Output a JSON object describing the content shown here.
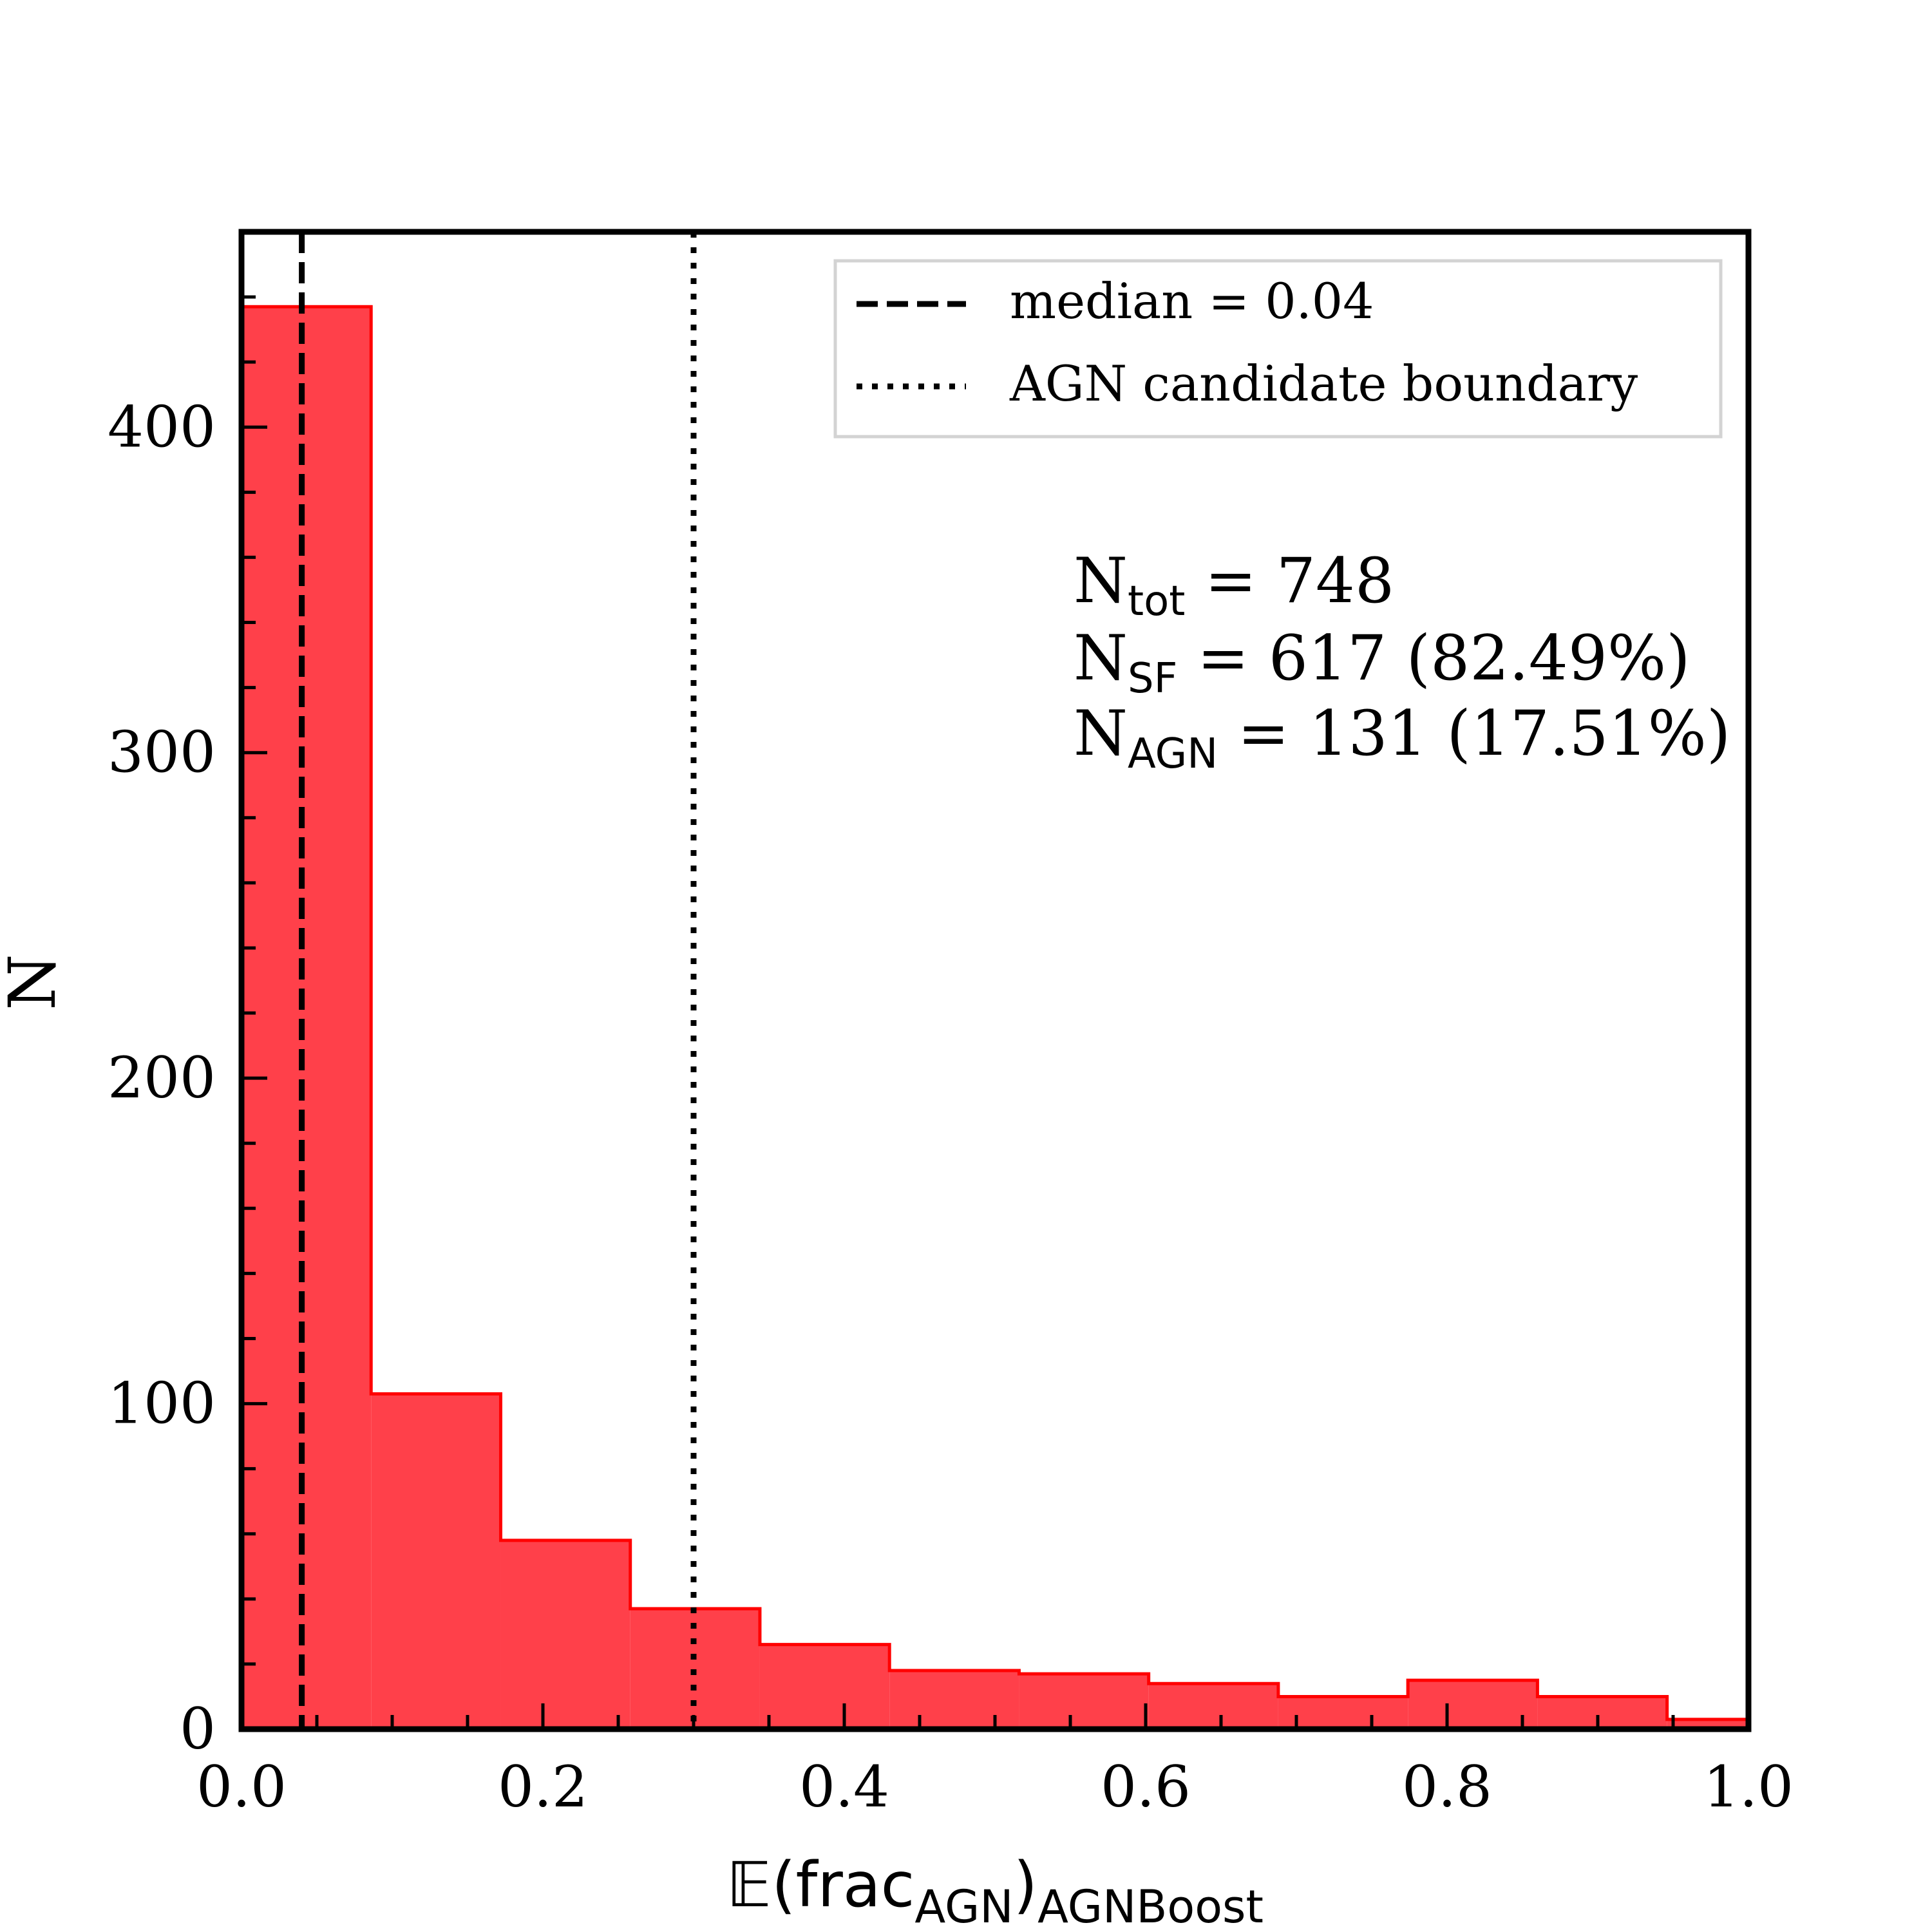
{
  "chart_data": {
    "type": "histogram",
    "xlabel": {
      "main": "𝔼(frac",
      "sub1": "AGN",
      "close": ")",
      "sub2": "AGNBoost"
    },
    "ylabel": "N",
    "xlim": [
      0.0,
      1.0
    ],
    "ylim": [
      0,
      460
    ],
    "x_ticks": [
      {
        "value": 0.0,
        "label": "0.0"
      },
      {
        "value": 0.2,
        "label": "0.2"
      },
      {
        "value": 0.4,
        "label": "0.4"
      },
      {
        "value": 0.6,
        "label": "0.6"
      },
      {
        "value": 0.8,
        "label": "0.8"
      },
      {
        "value": 1.0,
        "label": "1.0"
      }
    ],
    "y_ticks": [
      {
        "value": 0,
        "label": "0"
      },
      {
        "value": 100,
        "label": "100"
      },
      {
        "value": 200,
        "label": "200"
      },
      {
        "value": 300,
        "label": "300"
      },
      {
        "value": 400,
        "label": "400"
      }
    ],
    "x_minor_step": 0.05,
    "y_minor_step": 20,
    "bins": [
      {
        "x0": 0.0,
        "x1": 0.086,
        "count": 437
      },
      {
        "x0": 0.086,
        "x1": 0.172,
        "count": 103
      },
      {
        "x0": 0.172,
        "x1": 0.258,
        "count": 58
      },
      {
        "x0": 0.258,
        "x1": 0.344,
        "count": 37
      },
      {
        "x0": 0.344,
        "x1": 0.43,
        "count": 26
      },
      {
        "x0": 0.43,
        "x1": 0.516,
        "count": 18
      },
      {
        "x0": 0.516,
        "x1": 0.602,
        "count": 17
      },
      {
        "x0": 0.602,
        "x1": 0.688,
        "count": 14
      },
      {
        "x0": 0.688,
        "x1": 0.774,
        "count": 10
      },
      {
        "x0": 0.774,
        "x1": 0.86,
        "count": 15
      },
      {
        "x0": 0.86,
        "x1": 0.946,
        "count": 10
      },
      {
        "x0": 0.946,
        "x1": 1.032,
        "count": 3
      }
    ],
    "fill_color": "#ff404a",
    "edge_color": "#ff0000",
    "vlines": [
      {
        "name": "median",
        "x": 0.04,
        "style": "dashed"
      },
      {
        "name": "AGN candidate boundary",
        "x": 0.3,
        "style": "dotted"
      }
    ],
    "legend": {
      "placement": "upper-right",
      "entries": [
        {
          "style": "dashed",
          "label": "median =  0.04"
        },
        {
          "style": "dotted",
          "label": "AGN candidate boundary"
        }
      ]
    },
    "annotations": [
      {
        "symbol": "N",
        "sub": "tot",
        "text": " = 748"
      },
      {
        "symbol": "N",
        "sub": "SF",
        "text": " = 617 (82.49%)"
      },
      {
        "symbol": "N",
        "sub": "AGN",
        "text": " = 131 (17.51%)"
      }
    ],
    "grid": false
  }
}
